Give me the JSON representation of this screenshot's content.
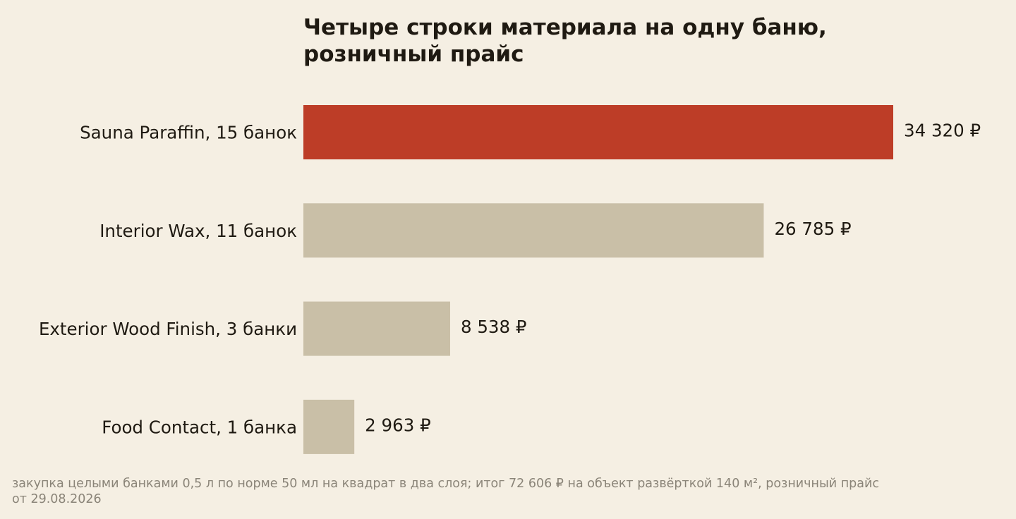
{
  "chart_data": {
    "type": "bar",
    "orientation": "horizontal",
    "title_lines": [
      "Четыре строки материала на одну баню,",
      "розничный прайс"
    ],
    "categories": [
      "Sauna Paraffin, 15 банок",
      "Interior Wax, 11 банок",
      "Exterior Wood Finish, 3 банки",
      "Food Contact, 1 банка"
    ],
    "values": [
      34320,
      26785,
      8538,
      2963
    ],
    "value_labels": [
      "34 320 ₽",
      "26 785 ₽",
      "8 538 ₽",
      "2 963 ₽"
    ],
    "colors": [
      "#bd3d27",
      "#c9bfa7",
      "#c9bfa7",
      "#c9bfa7"
    ],
    "xlim": [
      0,
      34320
    ],
    "grid": false,
    "legend": "none"
  },
  "footnote_lines": [
    "закупка целыми банками 0,5 л по норме 50 мл на квадрат в два слоя; итог 72 606 ₽ на объект развёрткой 140 м², розничный прайс",
    "от 29.08.2026"
  ],
  "colors": {
    "background": "#f5efe3",
    "text": "#1f1a12",
    "footnote": "#8a8478",
    "highlight": "#bd3d27",
    "muted_bar": "#c9bfa7"
  }
}
